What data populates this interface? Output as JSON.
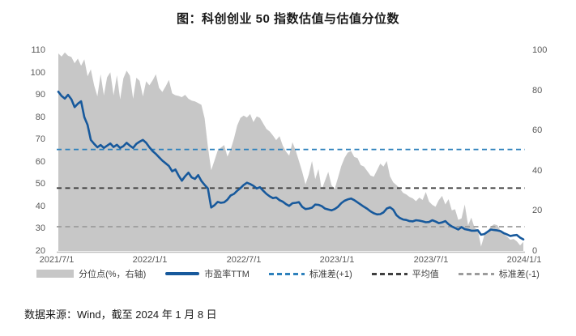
{
  "title": "图：科创创业 50 指数估值与估值分位数",
  "footer": "数据来源：Wind，截至 2024 年 1 月 8 日",
  "colors": {
    "pe_line": "#17599c",
    "stddev_plus1": "#2e81bc",
    "mean": "#3f3f3f",
    "stddev_minus1": "#9c9c9c",
    "area_fill": "#c7c7c7",
    "axis_line": "#bfbfbf",
    "tick_text": "#595959"
  },
  "chart_data": {
    "type": "line",
    "title": "图：科创创业 50 指数估值与估值分位数",
    "x_axis": {
      "labels": [
        "2021/7/1",
        "2022/1/1",
        "2022/7/1",
        "2023/1/1",
        "2023/7/1",
        "2024/1/1"
      ]
    },
    "left_axis": {
      "min": 20,
      "max": 110,
      "ticks": [
        110,
        100,
        90,
        80,
        70,
        60,
        50,
        40,
        30,
        20
      ]
    },
    "right_axis": {
      "min": 0,
      "max": 100,
      "ticks": [
        100,
        80,
        60,
        40,
        20,
        0
      ]
    },
    "legend_position": "bottom",
    "grid": false,
    "reference_lines": [
      {
        "name": "标准差(+1)",
        "value": 65.5,
        "axis": "left",
        "color": "#2e81bc",
        "style": "dashed"
      },
      {
        "name": "平均值",
        "value": 48.2,
        "axis": "left",
        "color": "#3f3f3f",
        "style": "dashed"
      },
      {
        "name": "标准差(-1)",
        "value": 30.9,
        "axis": "left",
        "color": "#9c9c9c",
        "style": "dashed"
      }
    ],
    "series": [
      {
        "name": "分位点(%，右轴)",
        "type": "area",
        "axis": "right",
        "color": "#c7c7c7",
        "values": [
          98.4,
          96.8,
          98.9,
          97.2,
          96.6,
          93.5,
          95.8,
          92.2,
          95.5,
          87.0,
          90.5,
          82.5,
          77.0,
          88.0,
          77.5,
          86.5,
          89.0,
          77.5,
          87.5,
          75.5,
          86.0,
          89.8,
          87.3,
          75.8,
          86.3,
          84.8,
          77.0,
          84.5,
          82.5,
          85.0,
          88.0,
          81.2,
          79.2,
          82.0,
          85.2,
          78.5,
          77.6,
          77.2,
          76.6,
          77.8,
          75.8,
          74.9,
          74.5,
          73.7,
          72.8,
          66.0,
          52.0,
          40.2,
          45.0,
          50.0,
          51.5,
          52.8,
          47.0,
          50.5,
          56.0,
          62.5,
          66.3,
          67.4,
          66.5,
          68.2,
          64.2,
          67.0,
          66.3,
          63.5,
          60.8,
          59.5,
          57.5,
          55.2,
          57.2,
          52.5,
          49.5,
          47.5,
          54.2,
          50.0,
          44.8,
          39.5,
          33.2,
          38.0,
          44.8,
          35.8,
          40.8,
          30.5,
          35.0,
          39.4,
          32.8,
          31.0,
          36.5,
          42.2,
          46.3,
          49.0,
          49.8,
          46.8,
          46.3,
          42.8,
          42.0,
          39.8,
          37.6,
          37.0,
          40.2,
          43.5,
          42.0,
          44.8,
          37.2,
          34.2,
          32.8,
          31.2,
          29.0,
          28.2,
          26.9,
          26.2,
          24.8,
          26.6,
          25.4,
          29.4,
          24.6,
          23.0,
          22.0,
          25.3,
          27.4,
          23.2,
          25.8,
          20.2,
          20.8,
          15.5,
          16.2,
          23.2,
          12.8,
          16.6,
          11.5,
          10.6,
          2.2,
          7.8,
          10.0,
          12.2,
          13.3,
          12.8,
          10.2,
          8.4,
          7.2,
          5.6,
          6.0,
          4.8,
          2.8,
          4.5
        ]
      },
      {
        "name": "市盈率TTM",
        "type": "line",
        "axis": "left",
        "color": "#17599c",
        "values": [
          91.4,
          89.5,
          88.3,
          90.0,
          88.0,
          84.5,
          86.0,
          87.1,
          80.0,
          76.5,
          69.8,
          68.0,
          66.5,
          67.5,
          66.2,
          67.2,
          68.2,
          66.6,
          67.6,
          66.2,
          67.0,
          68.5,
          67.2,
          66.2,
          68.0,
          69.0,
          69.8,
          68.5,
          66.5,
          64.8,
          63.5,
          62.0,
          60.5,
          59.3,
          58.1,
          55.7,
          56.5,
          53.8,
          51.5,
          53.5,
          55.1,
          53.0,
          52.3,
          54.0,
          51.4,
          49.6,
          48.0,
          39.5,
          40.5,
          42.0,
          41.6,
          41.8,
          43.0,
          44.9,
          45.6,
          47.0,
          48.2,
          49.6,
          50.6,
          50.0,
          49.2,
          48.0,
          48.6,
          47.0,
          45.6,
          44.5,
          43.7,
          44.0,
          42.8,
          42.1,
          41.0,
          40.2,
          41.4,
          41.6,
          41.9,
          39.8,
          38.8,
          39.0,
          39.4,
          40.8,
          40.7,
          40.1,
          39.0,
          38.6,
          38.2,
          38.8,
          39.8,
          41.4,
          42.5,
          43.1,
          43.5,
          42.8,
          41.8,
          40.8,
          39.8,
          38.9,
          37.8,
          36.9,
          36.4,
          36.5,
          37.3,
          39.0,
          39.6,
          38.5,
          36.0,
          34.8,
          34.1,
          33.9,
          33.4,
          33.3,
          33.8,
          33.6,
          33.3,
          32.9,
          33.0,
          33.8,
          33.2,
          32.5,
          32.8,
          33.4,
          32.0,
          31.0,
          30.3,
          29.6,
          30.7,
          29.8,
          29.5,
          29.1,
          29.1,
          29.3,
          27.3,
          27.6,
          28.6,
          29.6,
          29.4,
          29.2,
          28.9,
          28.0,
          27.4,
          26.7,
          27.0,
          27.2,
          26.0,
          25.2
        ]
      }
    ]
  }
}
